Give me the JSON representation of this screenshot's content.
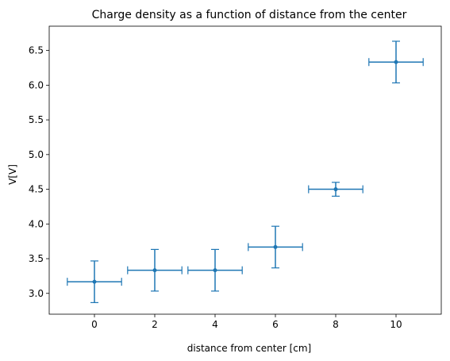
{
  "chart_data": {
    "type": "scatter",
    "title": "Charge density as a function of distance from the center",
    "xlabel": "distance from center [cm]",
    "ylabel": "V[V]",
    "xlim": [
      -1.5,
      11.5
    ],
    "ylim": [
      2.7,
      6.85
    ],
    "xticks": [
      0,
      2,
      4,
      6,
      8,
      10
    ],
    "yticks": [
      3.0,
      3.5,
      4.0,
      4.5,
      5.0,
      5.5,
      6.0,
      6.5
    ],
    "xtick_labels": [
      "0",
      "2",
      "4",
      "6",
      "8",
      "10"
    ],
    "ytick_labels": [
      "3.0",
      "3.5",
      "4.0",
      "4.5",
      "5.0",
      "5.5",
      "6.0",
      "6.5"
    ],
    "grid": false,
    "color": "#1f77b4",
    "points": [
      {
        "x": 0,
        "y": 3.167,
        "xerr": 0.9,
        "yerr": 0.3
      },
      {
        "x": 2,
        "y": 3.333,
        "xerr": 0.9,
        "yerr": 0.3
      },
      {
        "x": 4,
        "y": 3.333,
        "xerr": 0.9,
        "yerr": 0.3
      },
      {
        "x": 6,
        "y": 3.667,
        "xerr": 0.9,
        "yerr": 0.3
      },
      {
        "x": 8,
        "y": 4.5,
        "xerr": 0.9,
        "yerr": 0.1
      },
      {
        "x": 10,
        "y": 6.333,
        "xerr": 0.9,
        "yerr": 0.3
      }
    ]
  }
}
